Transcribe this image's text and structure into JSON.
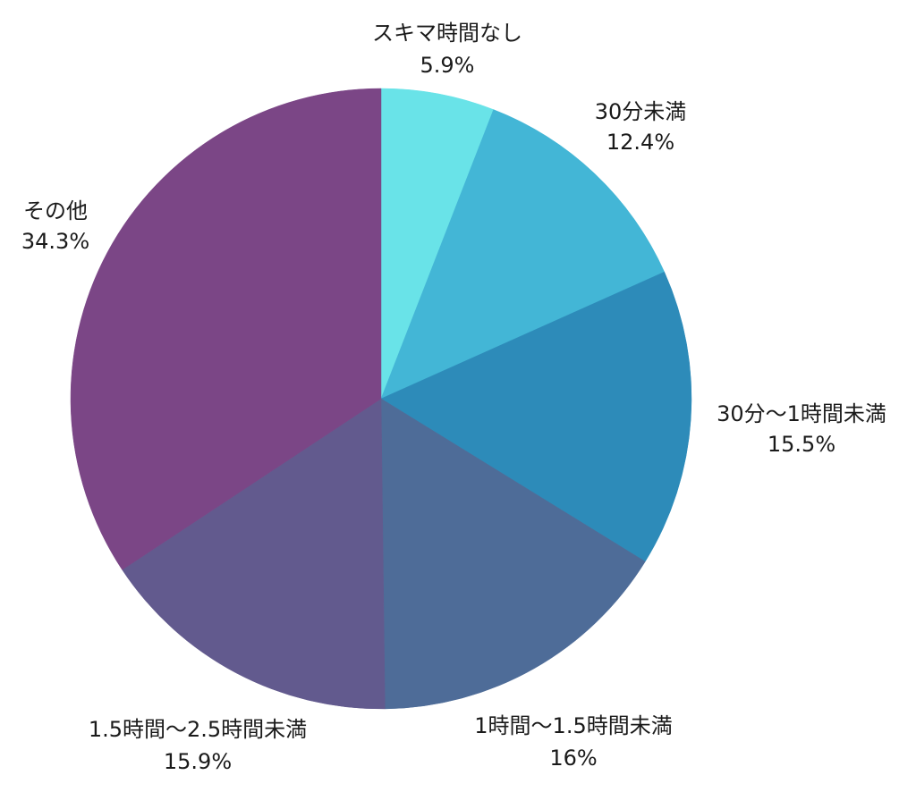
{
  "chart_data": {
    "type": "pie",
    "title": "",
    "start_angle_deg": 0,
    "direction": "clockwise",
    "slices": [
      {
        "label": "スキマ時間なし",
        "value": 5.9,
        "value_text": "5.9%",
        "color": "#69e3e8"
      },
      {
        "label": "30分未満",
        "value": 12.4,
        "value_text": "12.4%",
        "color": "#43b6d6"
      },
      {
        "label": "30分〜1時間未満",
        "value": 15.5,
        "value_text": "15.5%",
        "color": "#2d8bb9"
      },
      {
        "label": "1時間〜1.5時間未満",
        "value": 16,
        "value_text": "16%",
        "color": "#4e6c98"
      },
      {
        "label": "1.5時間〜2.5時間未満",
        "value": 15.9,
        "value_text": "15.9%",
        "color": "#625a8e"
      },
      {
        "label": "その他",
        "value": 34.3,
        "value_text": "34.3%",
        "color": "#7b4686"
      }
    ]
  }
}
